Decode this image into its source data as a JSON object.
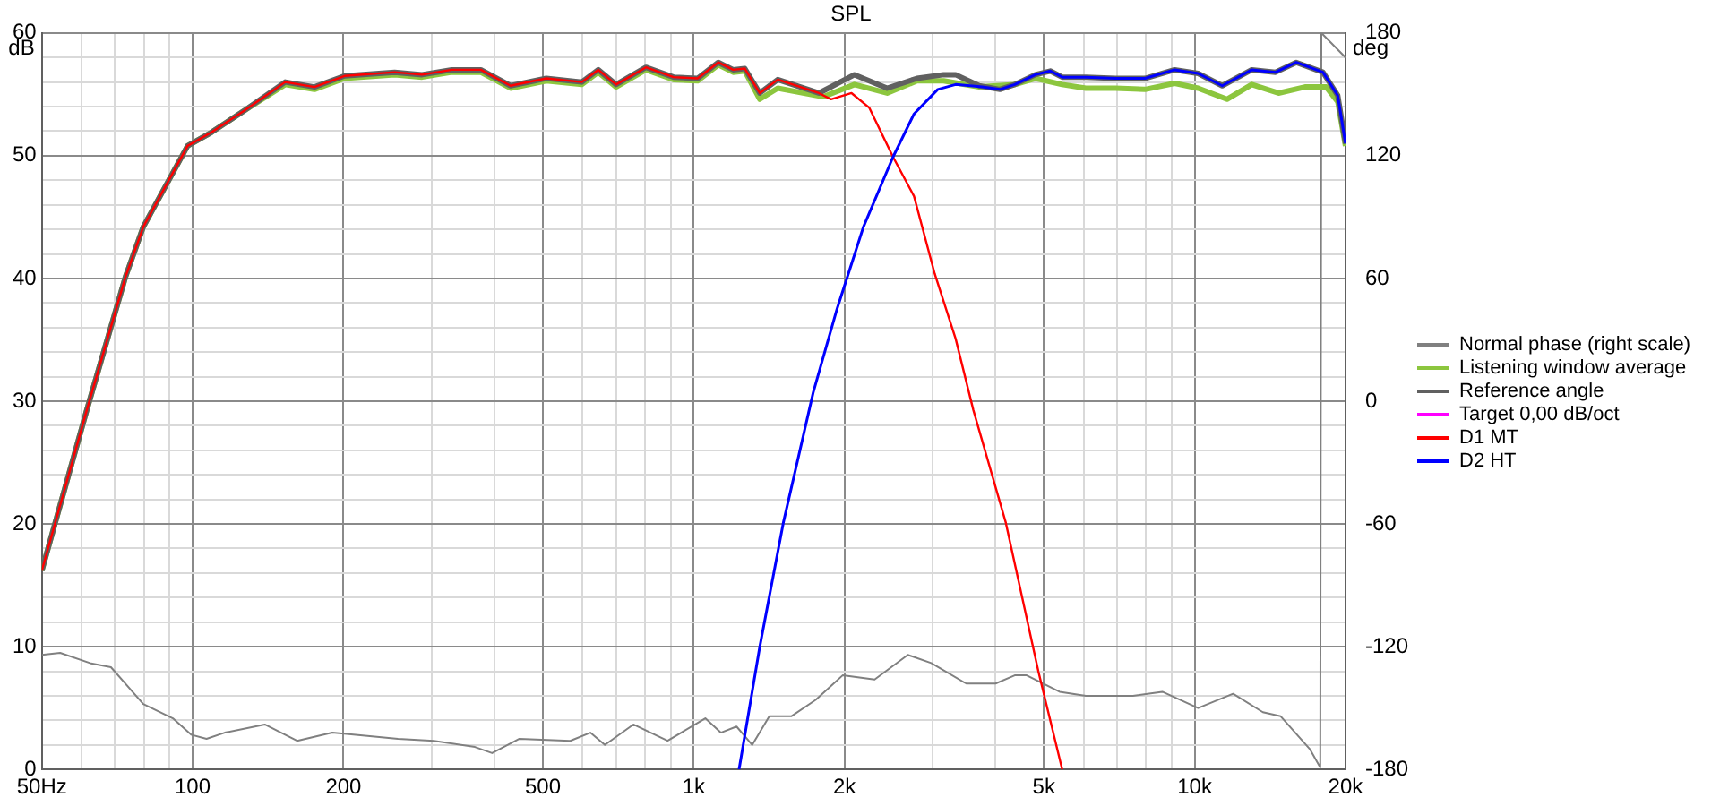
{
  "chart_data": {
    "type": "line",
    "title": "SPL",
    "ylabel": "dB",
    "y2label": "deg",
    "xlim": [
      50,
      20000
    ],
    "xticks": [
      {
        "value": 50,
        "label": "50Hz"
      },
      {
        "value": 60,
        "label": null
      },
      {
        "value": 70,
        "label": null
      },
      {
        "value": 80,
        "label": null
      },
      {
        "value": 90,
        "label": null
      },
      100,
      200,
      {
        "value": 300,
        "label": null
      },
      {
        "value": 400,
        "label": null
      },
      500,
      {
        "value": 600,
        "label": null
      },
      {
        "value": 700,
        "label": null
      },
      {
        "value": 800,
        "label": null
      },
      {
        "value": 900,
        "label": null
      },
      {
        "value": 1000,
        "label": "1k"
      },
      {
        "value": 2000,
        "label": "2k"
      },
      {
        "value": 3000,
        "label": null
      },
      {
        "value": 4000,
        "label": null
      },
      {
        "value": 5000,
        "label": "5k"
      },
      {
        "value": 6000,
        "label": null
      },
      {
        "value": 7000,
        "label": null
      },
      {
        "value": 8000,
        "label": null
      },
      {
        "value": 9000,
        "label": null
      },
      {
        "value": 10000,
        "label": "10k"
      },
      {
        "value": 20000,
        "label": "20k"
      }
    ],
    "ylim": [
      0,
      60
    ],
    "yticks": [
      0,
      {
        "value": 2,
        "label": null
      },
      {
        "value": 4,
        "label": null
      },
      {
        "value": 6,
        "label": null
      },
      {
        "value": 8,
        "label": null
      },
      10,
      {
        "value": 12,
        "label": null
      },
      {
        "value": 14,
        "label": null
      },
      {
        "value": 16,
        "label": null
      },
      {
        "value": 18,
        "label": null
      },
      20,
      {
        "value": 22,
        "label": null
      },
      {
        "value": 24,
        "label": null
      },
      {
        "value": 26,
        "label": null
      },
      {
        "value": 28,
        "label": null
      },
      30,
      {
        "value": 32,
        "label": null
      },
      {
        "value": 34,
        "label": null
      },
      {
        "value": 36,
        "label": null
      },
      {
        "value": 38,
        "label": null
      },
      40,
      {
        "value": 42,
        "label": null
      },
      {
        "value": 44,
        "label": null
      },
      {
        "value": 46,
        "label": null
      },
      {
        "value": 48,
        "label": null
      },
      50,
      {
        "value": 52,
        "label": null
      },
      {
        "value": 54,
        "label": null
      },
      {
        "value": 56,
        "label": null
      },
      {
        "value": 58,
        "label": null
      },
      60
    ],
    "y2lim": [
      -180,
      180
    ],
    "y2ticks": [
      -180,
      -120,
      -60,
      0,
      60,
      120,
      180
    ],
    "log": "x",
    "grid": true,
    "legend": "right",
    "series": [
      {
        "name": "Normal phase (right scale)",
        "color": "#808080",
        "axis": "y2",
        "x": [
          50,
          54.4,
          62.4,
          68.7,
          79.7,
          91.3,
          99.3,
          106.6,
          115.9,
          139.3,
          161.6,
          190,
          257,
          303,
          366,
          396,
          449,
          567,
          622,
          665,
          758,
          887,
          1055,
          1133,
          1218,
          1309,
          1416,
          1566,
          1752,
          1983,
          2297,
          2676,
          2980,
          3500,
          4006,
          4374,
          4621,
          5375,
          6065,
          7530,
          8620,
          10160,
          11930,
          13680,
          14850,
          16970,
          17810,
          17900,
          20000
        ],
        "values": [
          -124,
          -123,
          -128,
          -130,
          -148,
          -155,
          -163,
          -165,
          -162,
          -158,
          -166,
          -162,
          -165,
          -166,
          -169,
          -172,
          -165,
          -166,
          -162,
          -168,
          -158,
          -166,
          -155,
          -162,
          -159,
          -168,
          -154,
          -154,
          -146,
          -134,
          -136,
          -124,
          -128,
          -138,
          -138,
          -134,
          -134,
          -142,
          -144,
          -144,
          -142,
          -150,
          -143,
          -152,
          -154,
          -170,
          -179,
          180,
          168
        ]
      },
      {
        "name": "Listening window average",
        "color": "#8cc63e",
        "x": [
          50,
          61.5,
          73.4,
          79.7,
          97.7,
          109,
          127,
          153,
          175,
          201,
          253,
          287,
          329,
          376,
          431,
          508,
          598,
          645,
          700,
          803,
          912,
          1018,
          1120,
          1199,
          1265,
          1355,
          1472,
          1815,
          2094,
          2433,
          2791,
          3155,
          3715,
          4374,
          4809,
          5440,
          6065,
          6950,
          7960,
          9120,
          10160,
          11600,
          13000,
          14700,
          16600,
          18300,
          19300,
          20000
        ],
        "values": [
          16.2,
          29.3,
          40.1,
          44.2,
          50.8,
          51.9,
          53.7,
          55.8,
          55.4,
          56.3,
          56.6,
          56.4,
          56.8,
          56.8,
          55.5,
          56.1,
          55.8,
          56.8,
          55.6,
          57.0,
          56.2,
          56.1,
          57.4,
          56.8,
          56.9,
          54.6,
          55.5,
          54.8,
          55.8,
          55.1,
          56.1,
          56.1,
          55.6,
          55.8,
          56.3,
          55.8,
          55.5,
          55.5,
          55.4,
          55.9,
          55.5,
          54.6,
          55.8,
          55.1,
          55.6,
          55.6,
          54.4,
          50.8
        ]
      },
      {
        "name": "Reference angle",
        "color": "#606060",
        "x": [
          50,
          61.5,
          73.4,
          79.7,
          97.7,
          109,
          127,
          153,
          175,
          201,
          253,
          287,
          329,
          376,
          431,
          508,
          598,
          645,
          700,
          803,
          912,
          1018,
          1120,
          1199,
          1265,
          1355,
          1472,
          1778,
          2094,
          2433,
          2791,
          3155,
          3333,
          3715,
          4085,
          4374,
          4809,
          5150,
          5440,
          6065,
          6950,
          7960,
          9120,
          10160,
          11350,
          13000,
          14500,
          15950,
          18030,
          19300,
          20000
        ],
        "values": [
          16.2,
          29.3,
          40.1,
          44.2,
          50.8,
          51.9,
          53.7,
          56.0,
          55.6,
          56.5,
          56.8,
          56.6,
          57.0,
          57.0,
          55.7,
          56.3,
          56.0,
          57.0,
          55.8,
          57.2,
          56.4,
          56.3,
          57.6,
          57.0,
          57.1,
          55.1,
          56.2,
          55.1,
          56.6,
          55.5,
          56.3,
          56.6,
          56.6,
          55.7,
          55.4,
          55.8,
          56.6,
          56.9,
          56.4,
          56.4,
          56.3,
          56.3,
          57.0,
          56.7,
          55.7,
          57.0,
          56.8,
          57.6,
          56.8,
          54.9,
          51.0
        ]
      },
      {
        "name": "Target 0,00 dB/oct",
        "color": "#ff00ff"
      },
      {
        "name": "D1 MT",
        "color": "#ff0000",
        "x": [
          50,
          61.5,
          73.4,
          79.7,
          97.7,
          109,
          127,
          153,
          175,
          201,
          253,
          287,
          329,
          376,
          431,
          508,
          598,
          645,
          700,
          803,
          912,
          1018,
          1120,
          1199,
          1265,
          1355,
          1472,
          1778,
          1880,
          2066,
          2242,
          2500,
          2753,
          3027,
          3333,
          3615,
          4198,
          4875,
          5440
        ],
        "values": [
          16.2,
          29.3,
          40.1,
          44.2,
          50.8,
          51.9,
          53.7,
          56.0,
          55.6,
          56.5,
          56.8,
          56.6,
          57.0,
          57.0,
          55.7,
          56.3,
          56.0,
          57.0,
          55.8,
          57.2,
          56.4,
          56.3,
          57.6,
          57.0,
          57.1,
          55.1,
          56.2,
          55.1,
          54.6,
          55.1,
          53.9,
          49.9,
          46.7,
          40.4,
          35.1,
          29.3,
          20.1,
          8.0,
          0.0
        ]
      },
      {
        "name": "D2 HT",
        "color": "#0000ff",
        "x": [
          1232,
          1355,
          1510,
          1732,
          1932,
          2182,
          2500,
          2753,
          3070,
          3333,
          3767,
          4085,
          4374,
          4809,
          5150,
          5440,
          6065,
          6950,
          7960,
          9120,
          10160,
          11350,
          13000,
          14500,
          15950,
          18030,
          19300,
          20000
        ],
        "values": [
          0.0,
          10.0,
          20.1,
          30.7,
          37.5,
          44.2,
          49.9,
          53.4,
          55.4,
          55.8,
          55.6,
          55.4,
          55.8,
          56.6,
          56.9,
          56.4,
          56.4,
          56.3,
          56.3,
          57.0,
          56.7,
          55.7,
          57.0,
          56.8,
          57.6,
          56.8,
          54.9,
          51.0
        ]
      }
    ]
  }
}
